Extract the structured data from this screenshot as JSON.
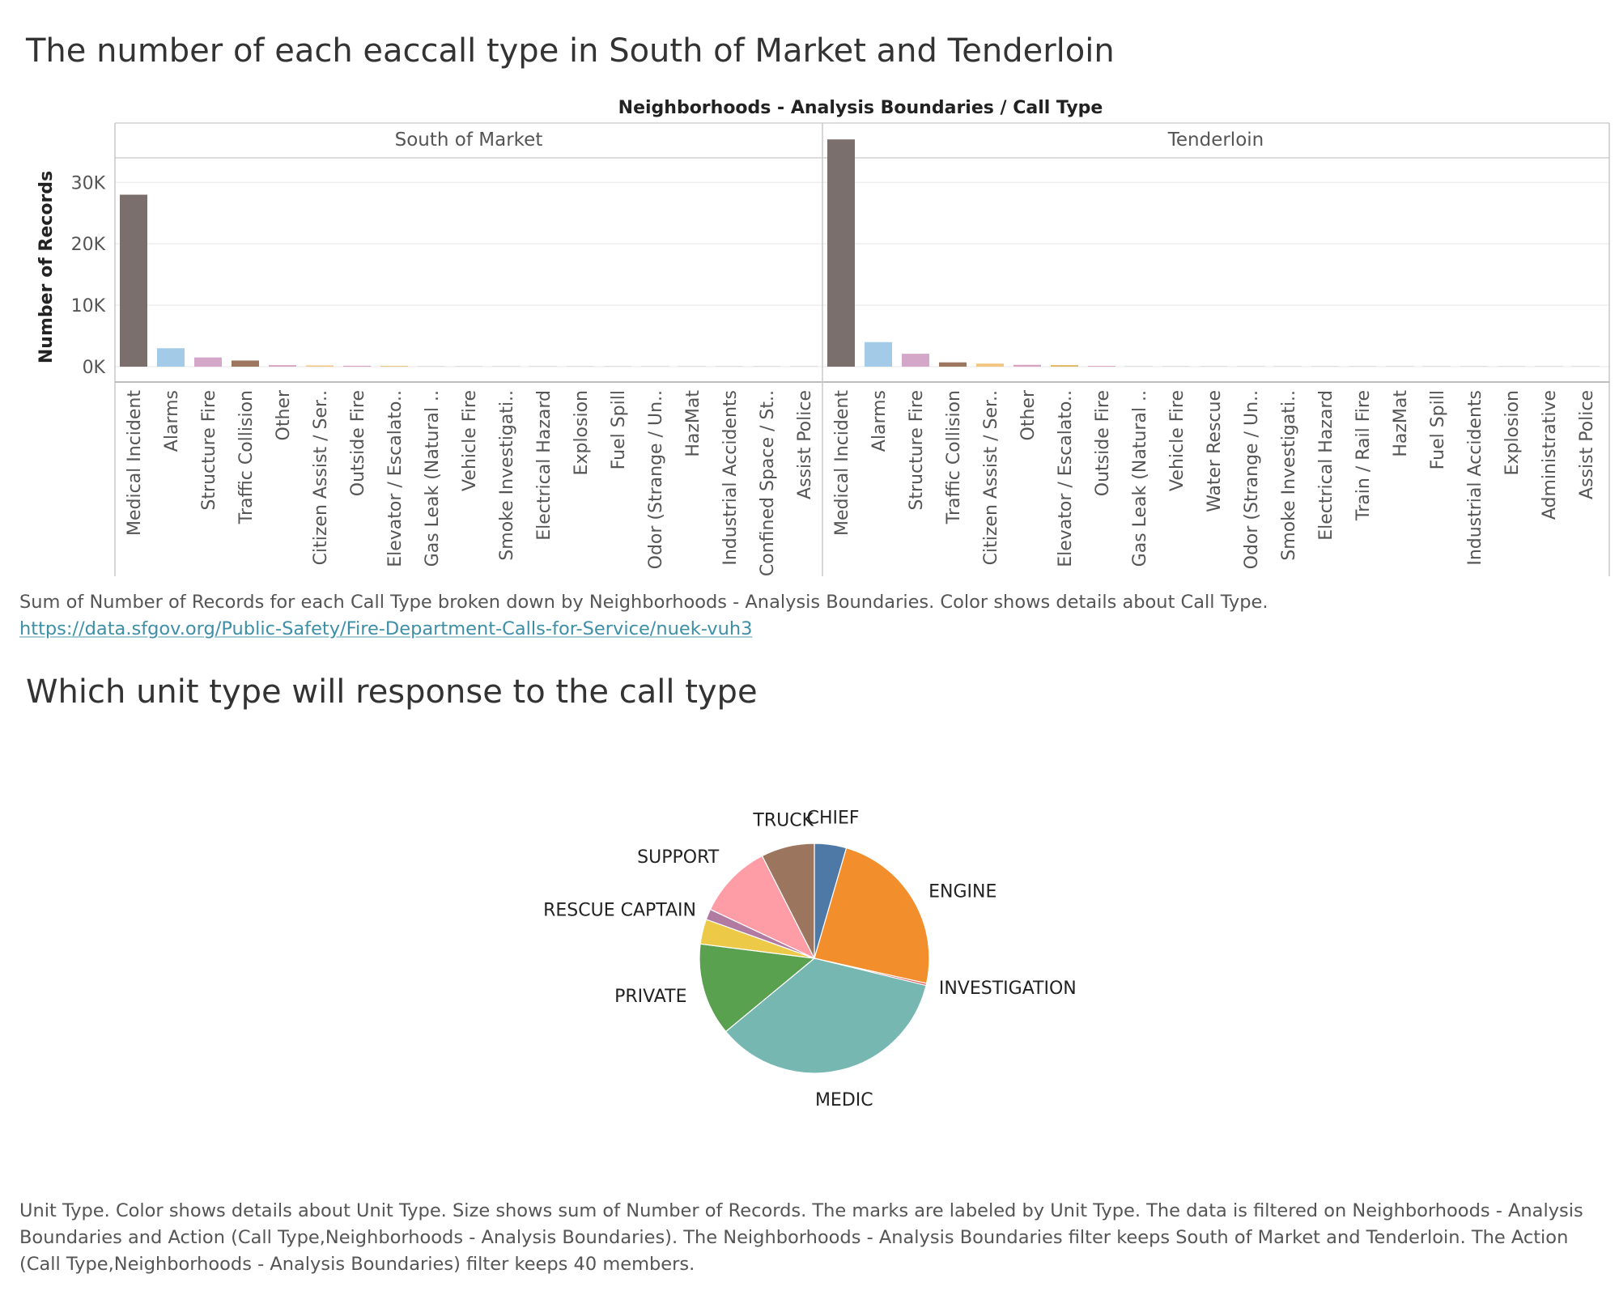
{
  "chart1": {
    "title": "The number of each eaccall type in South of Market and Tenderloin",
    "caption": "Sum of Number of Records for each Call Type broken down by Neighborhoods - Analysis Boundaries.  Color shows details about Call Type.",
    "link": "https://data.sfgov.org/Public-Safety/Fire-Department-Calls-for-Service/nuek-vuh3"
  },
  "chart2": {
    "title": "Which unit type will response to the call type",
    "caption": "Unit Type.  Color shows details about Unit Type.  Size shows sum of Number of Records.  The marks are labeled by Unit Type. The data is filtered on Neighborhoods - Analysis Boundaries and Action (Call Type,Neighborhoods - Analysis Boundaries). The Neighborhoods - Analysis Boundaries filter keeps South of Market and Tenderloin. The Action (Call Type,Neighborhoods - Analysis Boundaries) filter keeps 40 members."
  },
  "chart_data": [
    {
      "type": "bar",
      "header": "Neighborhoods - Analysis Boundaries  /  Call Type",
      "xlabel": "",
      "ylabel": "Number of Records",
      "ylim": [
        -2500,
        34000
      ],
      "yticks": [
        0,
        10000,
        20000,
        30000
      ],
      "ytick_labels": [
        "0K",
        "10K",
        "20K",
        "30K"
      ],
      "grid": true,
      "colors": {
        "Medical Incident": "#7b6f6e",
        "Alarms": "#a3cbe8",
        "Structure Fire": "#d4a6c8",
        "Traffic Collision": "#9d7660",
        "Other": "#d7a3bf",
        "Citizen Assist / Ser..": "#f1c480",
        "Outside Fire": "#d7a3bf",
        "Elevator / Escalato..": "#e0b560",
        "default": "#d9d9d9"
      },
      "panels": [
        {
          "name": "South of Market",
          "categories": [
            "Medical Incident",
            "Alarms",
            "Structure Fire",
            "Traffic Collision",
            "Other",
            "Citizen Assist / Ser..",
            "Outside Fire",
            "Elevator / Escalato..",
            "Gas Leak (Natural ..",
            "Vehicle Fire",
            "Smoke Investigati..",
            "Electrical Hazard",
            "Explosion",
            "Fuel Spill",
            "Odor (Strange / Un..",
            "HazMat",
            "Industrial Accidents",
            "Confined Space / St..",
            "Assist Police"
          ],
          "values": [
            28000,
            3000,
            1500,
            1000,
            250,
            200,
            150,
            60,
            50,
            40,
            30,
            20,
            15,
            12,
            10,
            8,
            6,
            5,
            4
          ]
        },
        {
          "name": "Tenderloin",
          "categories": [
            "Medical Incident",
            "Alarms",
            "Structure Fire",
            "Traffic Collision",
            "Citizen Assist / Ser..",
            "Other",
            "Elevator / Escalato..",
            "Outside Fire",
            "Gas Leak (Natural ..",
            "Vehicle Fire",
            "Water Rescue",
            "Odor (Strange / Un..",
            "Smoke Investigati..",
            "Electrical Hazard",
            "Train / Rail Fire",
            "HazMat",
            "Fuel Spill",
            "Industrial Accidents",
            "Explosion",
            "Administrative",
            "Assist Police"
          ],
          "values": [
            37000,
            4000,
            2100,
            700,
            500,
            300,
            250,
            120,
            60,
            50,
            40,
            30,
            25,
            20,
            15,
            12,
            10,
            8,
            6,
            5,
            4
          ]
        }
      ]
    },
    {
      "type": "pie",
      "slices": [
        {
          "label": "CHIEF",
          "value": 4.5,
          "color": "#4e79a7"
        },
        {
          "label": "ENGINE",
          "value": 24.0,
          "color": "#f28e2b"
        },
        {
          "label": "INVESTIGATION",
          "value": 0.3,
          "color": "#e15759"
        },
        {
          "label": "MEDIC",
          "value": 35.2,
          "color": "#76b7b2"
        },
        {
          "label": "PRIVATE",
          "value": 13.0,
          "color": "#59a14f"
        },
        {
          "label": "",
          "value": 3.5,
          "color": "#edc948"
        },
        {
          "label": "RESCUE CAPTAIN",
          "value": 1.5,
          "color": "#b07aa1"
        },
        {
          "label": "SUPPORT",
          "value": 10.5,
          "color": "#ff9da7"
        },
        {
          "label": "TRUCK",
          "value": 7.5,
          "color": "#9c755f"
        }
      ]
    }
  ]
}
